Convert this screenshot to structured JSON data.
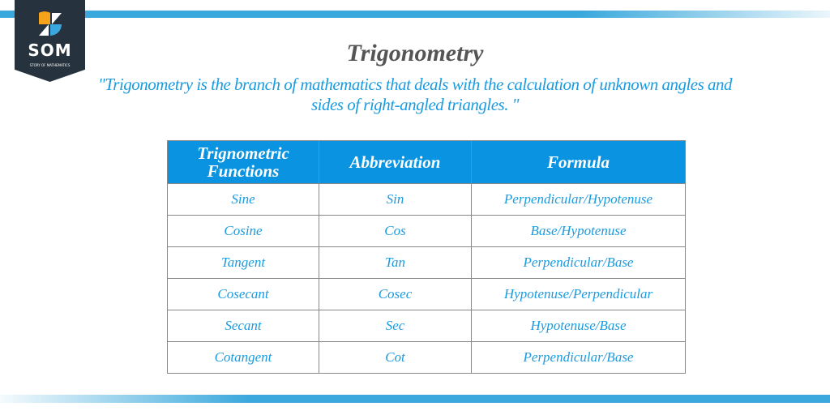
{
  "logo": {
    "text": "SOM",
    "subtitle": "STORY OF MATHEMATICS"
  },
  "title": "Trigonometry",
  "quote": "\"Trigonometry is the branch of mathematics that deals with the calculation of unknown angles and sides of right-angled triangles. \"",
  "table": {
    "headers": [
      "Trignometric Functions",
      "Abbreviation",
      "Formula"
    ],
    "rows": [
      [
        "Sine",
        "Sin",
        "Perpendicular/Hypotenuse"
      ],
      [
        "Cosine",
        "Cos",
        "Base/Hypotenuse"
      ],
      [
        "Tangent",
        "Tan",
        "Perpendicular/Base"
      ],
      [
        "Cosecant",
        "Cosec",
        "Hypotenuse/Perpendicular"
      ],
      [
        "Secant",
        "Sec",
        "Hypotenuse/Base"
      ],
      [
        "Cotangent",
        "Cot",
        "Perpendicular/Base"
      ]
    ]
  },
  "colors": {
    "accent": "#3aa8dc",
    "header": "#0a93e0",
    "text": "#1a9be0",
    "logo_bg": "#26323d",
    "logo_orange": "#f7a21b"
  }
}
